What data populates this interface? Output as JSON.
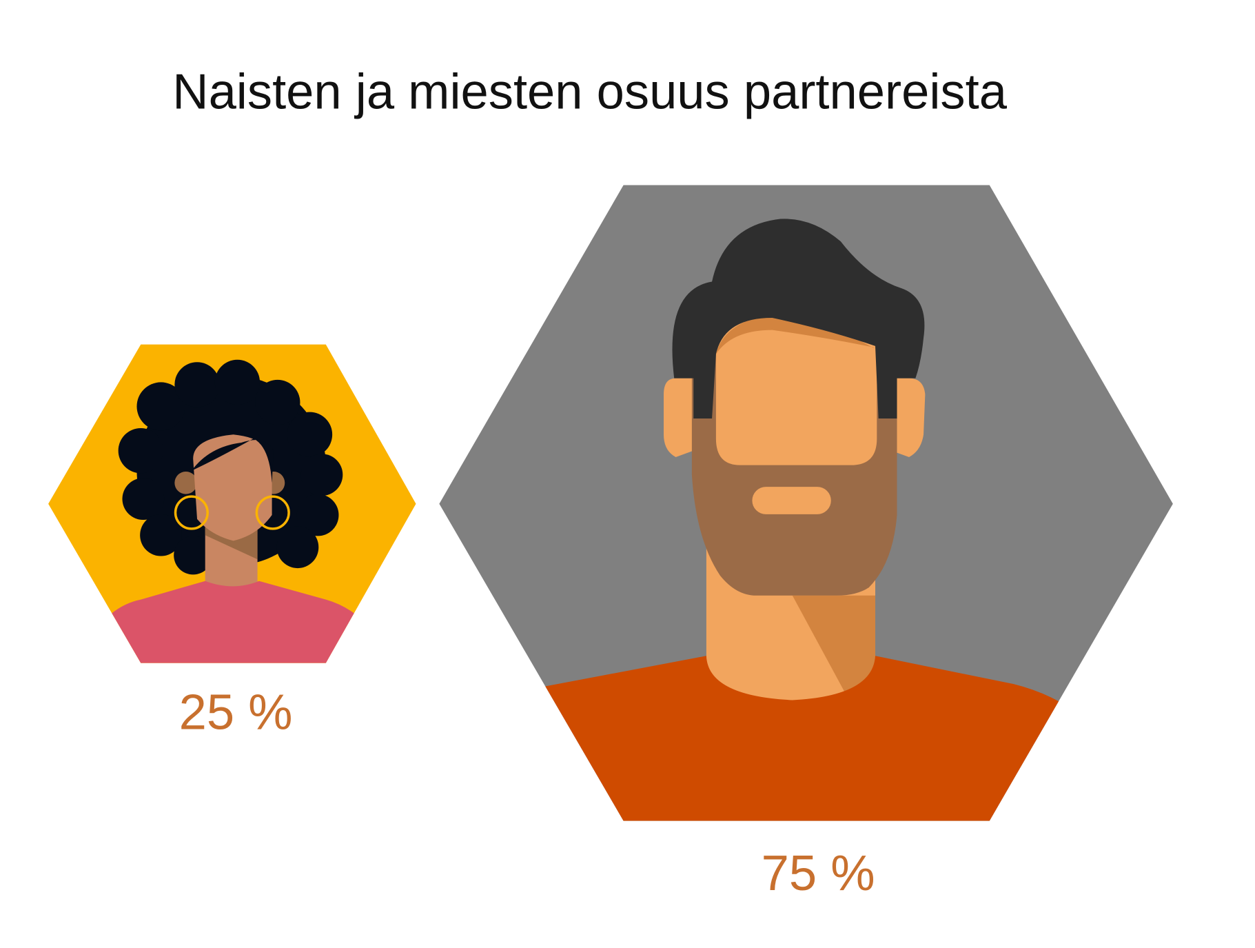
{
  "title": "Naisten ja miesten osuus partnereista",
  "items": [
    {
      "label": "25 %"
    },
    {
      "label": "75 %"
    }
  ]
}
